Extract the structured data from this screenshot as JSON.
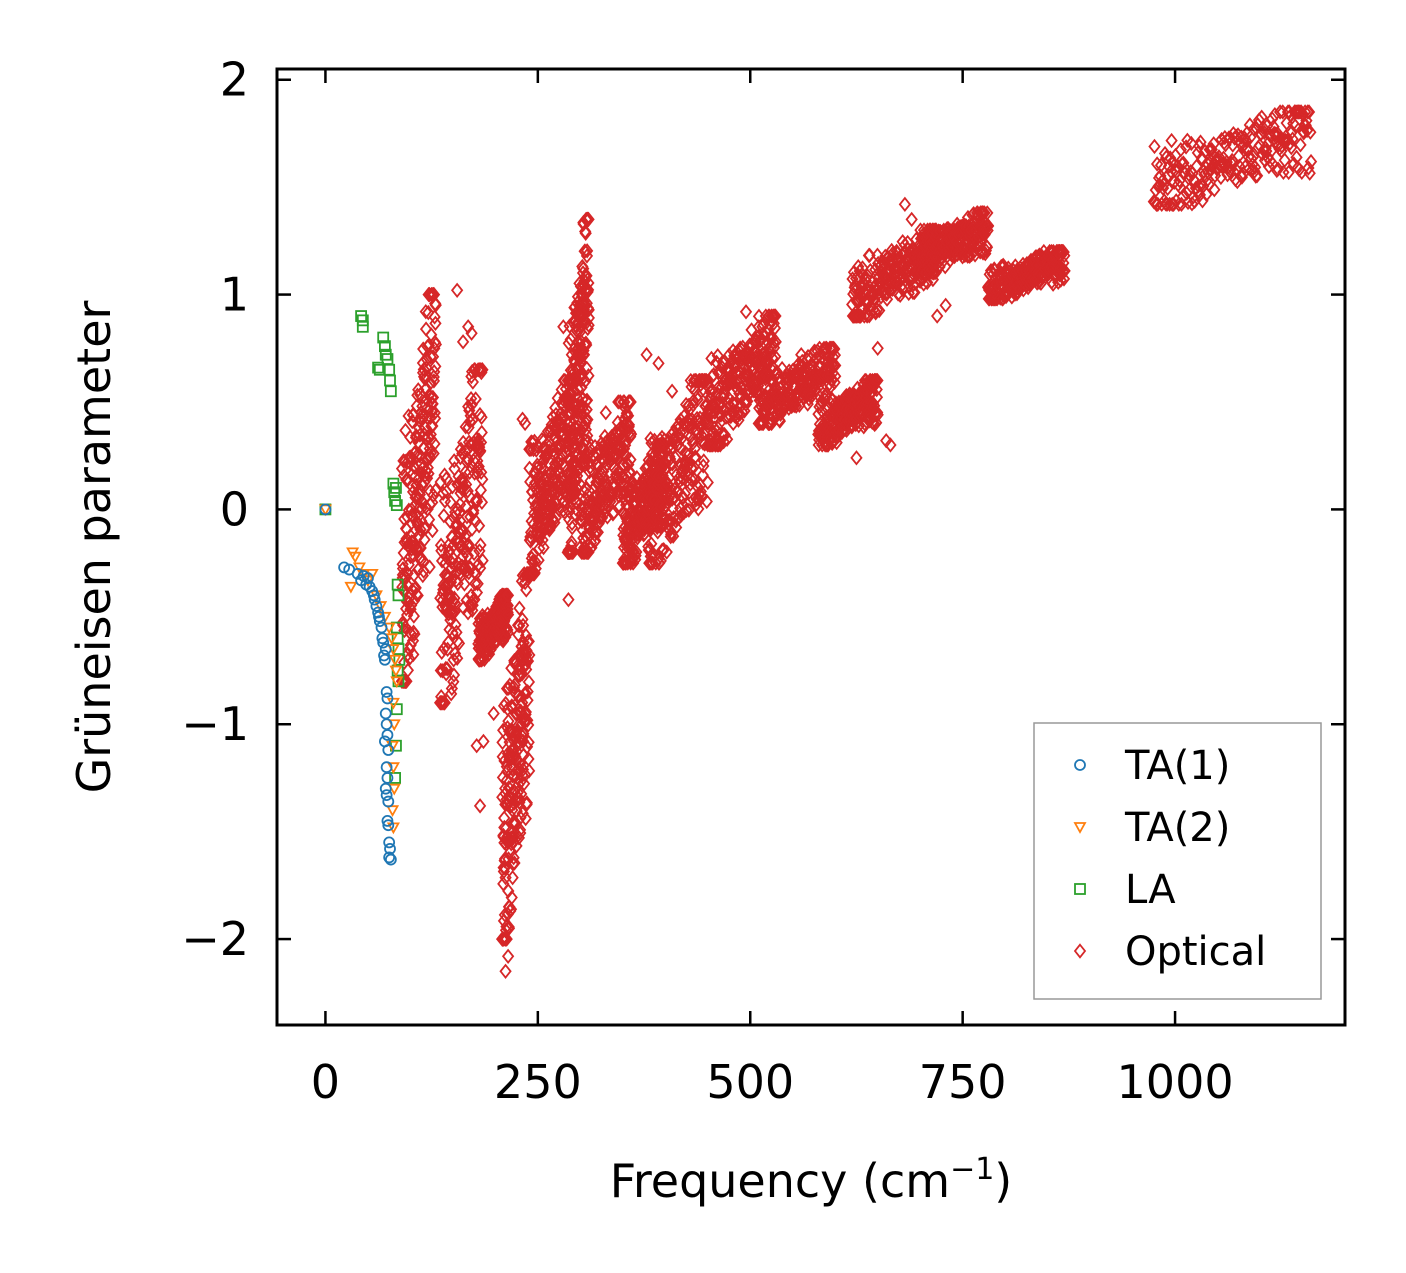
{
  "chart_data": {
    "type": "scatter",
    "xlabel": "Frequency (cm",
    "xlabel_sup": "−1",
    "xlabel_end": ")",
    "ylabel": "Grüneisen parameter",
    "xlim": [
      -57,
      1200
    ],
    "ylim": [
      -2.4,
      2.05
    ],
    "x_ticks": [
      0,
      250,
      500,
      750,
      1000
    ],
    "x_tick_labels": [
      "0",
      "250",
      "500",
      "750",
      "1000"
    ],
    "y_ticks": [
      -2,
      -1,
      0,
      1,
      2
    ],
    "y_tick_labels": [
      "−2",
      "−1",
      "0",
      "1",
      "2"
    ],
    "legend_position": "lower-right",
    "series": [
      {
        "name": "TA(1)",
        "marker": "circle",
        "color": "#1f77b4",
        "points": [
          [
            0,
            0.0
          ],
          [
            22,
            -0.27
          ],
          [
            28,
            -0.28
          ],
          [
            38,
            -0.3
          ],
          [
            42,
            -0.33
          ],
          [
            45,
            -0.31
          ],
          [
            48,
            -0.35
          ],
          [
            50,
            -0.32
          ],
          [
            52,
            -0.36
          ],
          [
            55,
            -0.38
          ],
          [
            57,
            -0.4
          ],
          [
            58,
            -0.42
          ],
          [
            60,
            -0.45
          ],
          [
            62,
            -0.48
          ],
          [
            63,
            -0.5
          ],
          [
            64,
            -0.52
          ],
          [
            66,
            -0.55
          ],
          [
            67,
            -0.6
          ],
          [
            68,
            -0.62
          ],
          [
            69,
            -0.68
          ],
          [
            70,
            -0.7
          ],
          [
            71,
            -0.65
          ],
          [
            72,
            -0.85
          ],
          [
            73,
            -0.88
          ],
          [
            71,
            -0.95
          ],
          [
            72,
            -1.0
          ],
          [
            73,
            -1.05
          ],
          [
            70,
            -1.08
          ],
          [
            74,
            -1.12
          ],
          [
            72,
            -1.2
          ],
          [
            73,
            -1.25
          ],
          [
            71,
            -1.3
          ],
          [
            72,
            -1.33
          ],
          [
            74,
            -1.36
          ],
          [
            73,
            -1.45
          ],
          [
            74,
            -1.47
          ],
          [
            75,
            -1.55
          ],
          [
            76,
            -1.58
          ],
          [
            75,
            -1.62
          ],
          [
            77,
            -1.63
          ]
        ]
      },
      {
        "name": "TA(2)",
        "marker": "triangle-down",
        "color": "#ff7f0e",
        "points": [
          [
            0,
            0.0
          ],
          [
            30,
            -0.36
          ],
          [
            32,
            -0.2
          ],
          [
            35,
            -0.22
          ],
          [
            40,
            -0.27
          ],
          [
            45,
            -0.3
          ],
          [
            50,
            -0.33
          ],
          [
            55,
            -0.3
          ],
          [
            60,
            -0.4
          ],
          [
            65,
            -0.45
          ],
          [
            70,
            -0.5
          ],
          [
            75,
            -0.55
          ],
          [
            78,
            -0.6
          ],
          [
            80,
            -0.65
          ],
          [
            82,
            -0.7
          ],
          [
            83,
            -0.75
          ],
          [
            84,
            -0.8
          ],
          [
            80,
            -0.9
          ],
          [
            81,
            -1.0
          ],
          [
            79,
            -1.1
          ],
          [
            80,
            -1.2
          ],
          [
            81,
            -1.3
          ],
          [
            79,
            -1.4
          ],
          [
            80,
            -1.48
          ]
        ]
      },
      {
        "name": "LA",
        "marker": "square",
        "color": "#2ca02c",
        "points": [
          [
            0,
            0.0
          ],
          [
            42,
            0.9
          ],
          [
            44,
            0.85
          ],
          [
            44,
            0.88
          ],
          [
            62,
            0.66
          ],
          [
            64,
            0.65
          ],
          [
            68,
            0.8
          ],
          [
            70,
            0.76
          ],
          [
            71,
            0.72
          ],
          [
            73,
            0.7
          ],
          [
            75,
            0.65
          ],
          [
            76,
            0.6
          ],
          [
            77,
            0.55
          ],
          [
            80,
            0.12
          ],
          [
            81,
            0.08
          ],
          [
            82,
            0.04
          ],
          [
            83,
            0.1
          ],
          [
            84,
            0.02
          ],
          [
            85,
            -0.35
          ],
          [
            86,
            -0.4
          ],
          [
            84,
            -0.55
          ],
          [
            85,
            -0.6
          ],
          [
            86,
            -0.65
          ],
          [
            87,
            -0.7
          ],
          [
            85,
            -0.75
          ],
          [
            86,
            -0.8
          ],
          [
            84,
            -0.93
          ],
          [
            83,
            -1.1
          ],
          [
            82,
            -1.25
          ]
        ]
      },
      {
        "name": "Optical",
        "marker": "diamond",
        "color": "#d62728",
        "clusters": [
          [
            90,
            130,
            -0.8,
            1.0
          ],
          [
            135,
            185,
            -0.9,
            0.65
          ],
          [
            180,
            215,
            -0.7,
            -0.4
          ],
          [
            208,
            240,
            -2.0,
            -0.3
          ],
          [
            240,
            290,
            -0.3,
            0.6
          ],
          [
            285,
            310,
            -0.2,
            1.35
          ],
          [
            300,
            360,
            -0.2,
            0.5
          ],
          [
            350,
            400,
            -0.25,
            0.3
          ],
          [
            380,
            450,
            -0.25,
            0.6
          ],
          [
            450,
            530,
            0.3,
            0.9
          ],
          [
            510,
            600,
            0.4,
            0.75
          ],
          [
            580,
            650,
            0.3,
            0.6
          ],
          [
            620,
            720,
            0.9,
            1.3
          ],
          [
            700,
            780,
            1.1,
            1.38
          ],
          [
            780,
            870,
            0.98,
            1.2
          ],
          [
            975,
            1160,
            1.42,
            1.85
          ]
        ],
        "points": [
          [
            155,
            1.02
          ],
          [
            162,
            0.78
          ],
          [
            168,
            0.85
          ],
          [
            172,
            0.82
          ],
          [
            178,
            -1.1
          ],
          [
            182,
            -1.38
          ],
          [
            186,
            -1.08
          ],
          [
            198,
            -0.95
          ],
          [
            212,
            -2.15
          ],
          [
            216,
            -1.95
          ],
          [
            215,
            -2.08
          ],
          [
            232,
            0.42
          ],
          [
            235,
            0.4
          ],
          [
            240,
            0.28
          ],
          [
            256,
            0.08
          ],
          [
            280,
            0.85
          ],
          [
            286,
            -0.42
          ],
          [
            290,
            0.72
          ],
          [
            298,
            0.78
          ],
          [
            305,
            -0.15
          ],
          [
            330,
            0.45
          ],
          [
            352,
            0.42
          ],
          [
            355,
            0.4
          ],
          [
            370,
            0.1
          ],
          [
            378,
            0.72
          ],
          [
            392,
            0.68
          ],
          [
            408,
            0.55
          ],
          [
            430,
            0.6
          ],
          [
            455,
            0.45
          ],
          [
            480,
            0.4
          ],
          [
            495,
            0.92
          ],
          [
            510,
            0.85
          ],
          [
            530,
            0.78
          ],
          [
            560,
            0.72
          ],
          [
            600,
            0.62
          ],
          [
            625,
            0.24
          ],
          [
            640,
            0.42
          ],
          [
            650,
            0.75
          ],
          [
            660,
            0.32
          ],
          [
            665,
            0.3
          ],
          [
            682,
            1.42
          ],
          [
            690,
            1.35
          ],
          [
            700,
            1.2
          ],
          [
            720,
            0.9
          ],
          [
            730,
            0.95
          ],
          [
            745,
            1.28
          ],
          [
            760,
            1.3
          ]
        ]
      }
    ]
  }
}
